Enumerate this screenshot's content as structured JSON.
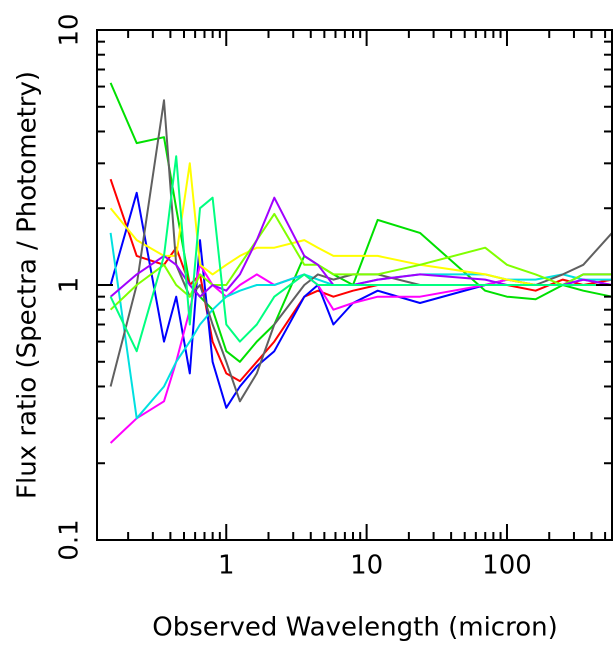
{
  "chart_data": {
    "type": "line",
    "xlabel": "Observed Wavelength (micron)",
    "ylabel": "Flux ratio (Spectra / Photometry)",
    "xscale": "log",
    "yscale": "log",
    "xlim": [
      0.12,
      560
    ],
    "ylim": [
      0.1,
      10
    ],
    "xticks": [
      1,
      10,
      100
    ],
    "yticks": [
      0.1,
      1,
      10
    ],
    "xticks_minor": [
      0.2,
      0.3,
      0.4,
      0.5,
      0.6,
      0.7,
      0.8,
      0.9,
      2,
      3,
      4,
      5,
      6,
      7,
      8,
      9,
      20,
      30,
      40,
      50,
      60,
      70,
      80,
      90,
      200,
      300,
      400,
      500
    ],
    "yticks_minor": [
      0.2,
      0.3,
      0.4,
      0.5,
      0.6,
      0.7,
      0.8,
      0.9,
      2,
      3,
      4,
      5,
      6,
      7,
      8,
      9
    ],
    "x": [
      0.15,
      0.23,
      0.36,
      0.44,
      0.55,
      0.65,
      0.8,
      1.0,
      1.25,
      1.65,
      2.2,
      3.6,
      4.5,
      5.8,
      8,
      12,
      24,
      70,
      100,
      160,
      250,
      350,
      560
    ],
    "series": [
      {
        "color": "#00e000",
        "values": [
          6.2,
          3.6,
          3.8,
          2.0,
          1.0,
          0.9,
          0.8,
          0.55,
          0.5,
          0.6,
          0.7,
          1.3,
          1.2,
          1.1,
          1.0,
          1.8,
          1.6,
          0.95,
          0.9,
          0.88,
          1.0,
          0.95,
          0.9
        ]
      },
      {
        "color": "#ff0000",
        "values": [
          2.6,
          1.3,
          1.2,
          1.4,
          1.0,
          1.1,
          0.6,
          0.45,
          0.42,
          0.5,
          0.6,
          0.9,
          0.95,
          0.9,
          0.95,
          1.0,
          1.0,
          1.0,
          1.0,
          0.95,
          1.05,
          1.0,
          1.05
        ]
      },
      {
        "color": "#0000ff",
        "values": [
          1.0,
          2.3,
          0.6,
          0.9,
          0.45,
          1.5,
          0.5,
          0.33,
          0.4,
          0.48,
          0.55,
          0.9,
          1.0,
          0.7,
          0.85,
          0.95,
          0.85,
          1.0,
          1.05,
          1.0,
          1.0,
          1.1,
          1.1
        ]
      },
      {
        "color": "#ff00ff",
        "values": [
          0.24,
          0.3,
          0.35,
          0.5,
          0.8,
          1.2,
          1.0,
          0.9,
          1.0,
          1.1,
          1.0,
          1.1,
          1.0,
          0.8,
          0.85,
          0.9,
          0.9,
          1.0,
          1.05,
          1.0,
          1.0,
          1.05,
          1.0
        ]
      },
      {
        "color": "#00e0e0",
        "values": [
          1.6,
          0.3,
          0.4,
          0.5,
          0.6,
          0.7,
          0.8,
          0.9,
          0.95,
          1.0,
          1.0,
          1.1,
          1.05,
          1.0,
          1.0,
          1.05,
          1.1,
          1.1,
          1.05,
          1.05,
          1.1,
          1.05,
          1.05
        ]
      },
      {
        "color": "#ffff00",
        "values": [
          2.0,
          1.5,
          1.3,
          1.3,
          3.0,
          1.2,
          1.1,
          1.2,
          1.3,
          1.4,
          1.4,
          1.5,
          1.4,
          1.3,
          1.3,
          1.3,
          1.2,
          1.1,
          1.05,
          1.0,
          1.0,
          1.0,
          1.0
        ]
      },
      {
        "color": "#606060",
        "values": [
          0.4,
          1.0,
          5.3,
          1.2,
          0.9,
          1.0,
          0.7,
          0.5,
          0.35,
          0.45,
          0.7,
          1.0,
          1.1,
          1.05,
          1.1,
          1.1,
          1.0,
          1.0,
          1.0,
          1.0,
          1.1,
          1.2,
          1.6
        ]
      },
      {
        "color": "#80ff00",
        "values": [
          0.8,
          1.0,
          1.2,
          1.0,
          0.9,
          1.1,
          1.0,
          1.0,
          1.2,
          1.5,
          1.9,
          1.2,
          1.2,
          1.1,
          1.1,
          1.1,
          1.2,
          1.4,
          1.2,
          1.1,
          1.0,
          1.1,
          1.1
        ]
      },
      {
        "color": "#a000ff",
        "values": [
          0.9,
          1.1,
          1.3,
          1.2,
          1.0,
          0.9,
          1.0,
          0.95,
          1.1,
          1.5,
          2.2,
          1.3,
          1.2,
          1.0,
          1.0,
          1.05,
          1.1,
          1.05,
          1.0,
          1.0,
          1.0,
          1.05,
          1.0
        ]
      },
      {
        "color": "#00ff80",
        "values": [
          0.9,
          0.55,
          1.3,
          3.2,
          0.7,
          2.0,
          2.2,
          0.7,
          0.6,
          0.7,
          0.9,
          1.1,
          1.0,
          1.0,
          1.0,
          1.0,
          1.0,
          1.0,
          1.0,
          1.0,
          1.0,
          1.0,
          1.0
        ]
      }
    ]
  }
}
